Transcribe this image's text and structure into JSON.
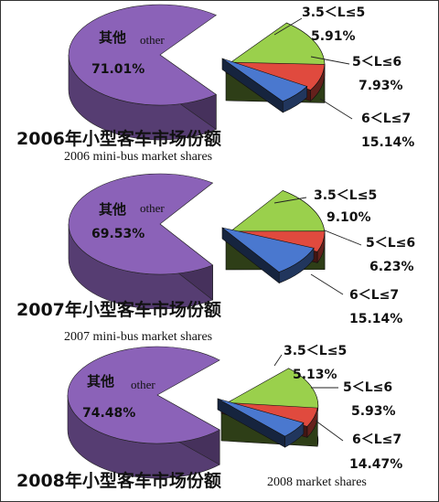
{
  "chart_data": [
    {
      "type": "pie",
      "title": "2006年小型客车市场份额",
      "subtitle": "2006 mini-bus market shares",
      "slices": [
        {
          "label_cn": "其他",
          "label_en": "other",
          "label": "",
          "value": 71.01,
          "text": "71.01%",
          "color": "#8b62b8"
        },
        {
          "label": "3.5＜L≤5",
          "value": 5.91,
          "text": "5.91%",
          "color": "#4a78cf"
        },
        {
          "label": "5＜L≤6",
          "value": 7.93,
          "text": "7.93%",
          "color": "#e04a3e"
        },
        {
          "label": "6＜L≤7",
          "value": 15.14,
          "text": "15.14%",
          "color": "#9ad04c"
        }
      ]
    },
    {
      "type": "pie",
      "title": "2007年小型客车市场份额",
      "subtitle": "2007 mini-bus market shares",
      "slices": [
        {
          "label_cn": "其他",
          "label_en": "other",
          "label": "",
          "value": 69.53,
          "text": "69.53%",
          "color": "#8b62b8"
        },
        {
          "label": "3.5＜L≤5",
          "value": 9.1,
          "text": "9.10%",
          "color": "#4a78cf"
        },
        {
          "label": "5＜L≤6",
          "value": 6.23,
          "text": "6.23%",
          "color": "#e04a3e"
        },
        {
          "label": "6＜L≤7",
          "value": 15.14,
          "text": "15.14%",
          "color": "#9ad04c"
        }
      ]
    },
    {
      "type": "pie",
      "title": "2008年小型客车市场份额",
      "subtitle": "2008  market shares",
      "slices": [
        {
          "label_cn": "其他",
          "label_en": "other",
          "label": "",
          "value": 74.48,
          "text": "74.48%",
          "color": "#8b62b8"
        },
        {
          "label": "3.5＜L≤5",
          "value": 5.13,
          "text": "5.13%",
          "color": "#4a78cf"
        },
        {
          "label": "5＜L≤6",
          "value": 5.93,
          "text": "5.93%",
          "color": "#e04a3e"
        },
        {
          "label": "6＜L≤7",
          "value": 14.47,
          "text": "14.47%",
          "color": "#9ad04c"
        }
      ]
    }
  ]
}
